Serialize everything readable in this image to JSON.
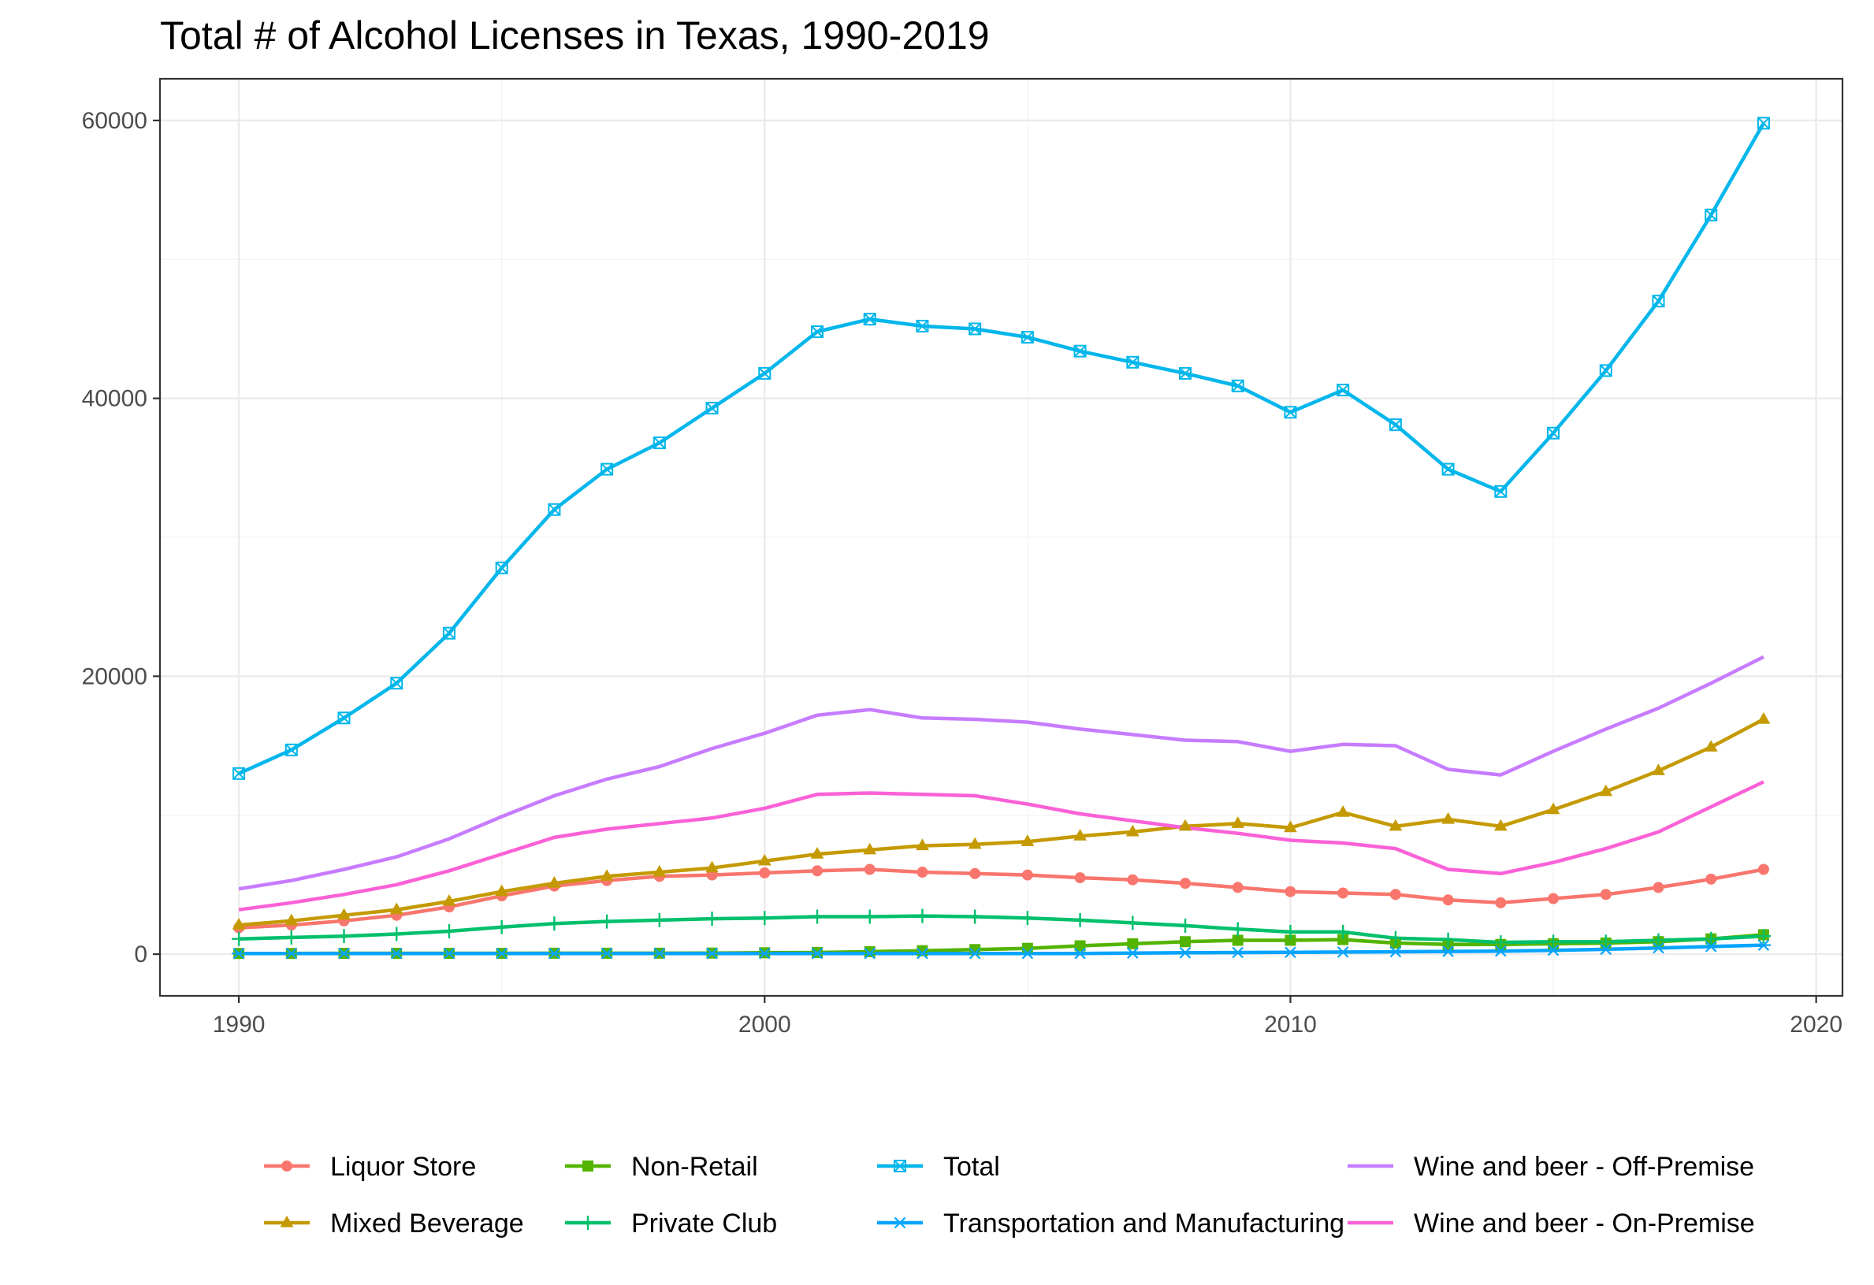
{
  "chart_data": {
    "type": "line",
    "title": "Total # of Alcohol Licenses in Texas, 1990-2019",
    "xlabel": "",
    "ylabel": "",
    "xlim": [
      1988.5,
      2020.5
    ],
    "ylim": [
      -3000,
      63000
    ],
    "x_ticks": [
      1990,
      2000,
      2010,
      2020
    ],
    "y_ticks": [
      0,
      20000,
      40000,
      60000
    ],
    "x_tick_labels": [
      "1990",
      "2000",
      "2010",
      "2020"
    ],
    "y_tick_labels": [
      "0",
      "20000",
      "40000",
      "60000"
    ],
    "grid": true,
    "legend_position": "bottom",
    "x": [
      1990,
      1991,
      1992,
      1993,
      1994,
      1995,
      1996,
      1997,
      1998,
      1999,
      2000,
      2001,
      2002,
      2003,
      2004,
      2005,
      2006,
      2007,
      2008,
      2009,
      2010,
      2011,
      2012,
      2013,
      2014,
      2015,
      2016,
      2017,
      2018,
      2019
    ],
    "series": [
      {
        "name": "Liquor Store",
        "color": "#F8766D",
        "marker": "circle",
        "values": [
          1900,
          2100,
          2400,
          2800,
          3400,
          4200,
          4900,
          5300,
          5600,
          5700,
          5850,
          6000,
          6100,
          5900,
          5800,
          5700,
          5500,
          5350,
          5100,
          4800,
          4500,
          4400,
          4300,
          3900,
          3700,
          4000,
          4300,
          4800,
          5400,
          6100
        ]
      },
      {
        "name": "Mixed Beverage",
        "color": "#C49A00",
        "marker": "triangle",
        "values": [
          2100,
          2400,
          2800,
          3200,
          3800,
          4500,
          5100,
          5600,
          5900,
          6200,
          6700,
          7200,
          7500,
          7800,
          7900,
          8100,
          8500,
          8800,
          9200,
          9400,
          9100,
          10200,
          9200,
          9700,
          9200,
          10400,
          11700,
          13200,
          14900,
          16900
        ]
      },
      {
        "name": "Non-Retail",
        "color": "#53B400",
        "marker": "square",
        "values": [
          50,
          50,
          60,
          60,
          60,
          60,
          70,
          70,
          70,
          80,
          100,
          120,
          180,
          250,
          330,
          420,
          600,
          750,
          900,
          1000,
          1000,
          1050,
          800,
          700,
          700,
          750,
          800,
          900,
          1100,
          1400
        ]
      },
      {
        "name": "Private Club",
        "color": "#00C06C",
        "marker": "plus",
        "values": [
          1100,
          1200,
          1300,
          1450,
          1650,
          1950,
          2200,
          2350,
          2450,
          2550,
          2600,
          2700,
          2700,
          2750,
          2700,
          2600,
          2450,
          2250,
          2050,
          1800,
          1600,
          1600,
          1150,
          1050,
          850,
          900,
          900,
          1000,
          1100,
          1300
        ]
      },
      {
        "name": "Total",
        "color": "#00B6EB",
        "marker": "boxx",
        "values": [
          13000,
          14700,
          17000,
          19500,
          23100,
          27800,
          32000,
          34900,
          36800,
          39300,
          41800,
          44800,
          45700,
          45200,
          45000,
          44400,
          43400,
          42600,
          41800,
          40900,
          39000,
          40600,
          38100,
          34900,
          33300,
          37500,
          42000,
          47000,
          53200,
          59800
        ]
      },
      {
        "name": "Transportation and Manufacturing",
        "color": "#06A4FF",
        "marker": "asterisk",
        "values": [
          50,
          50,
          50,
          50,
          50,
          50,
          50,
          50,
          50,
          50,
          50,
          50,
          50,
          50,
          50,
          50,
          50,
          80,
          100,
          120,
          130,
          150,
          170,
          200,
          220,
          280,
          350,
          450,
          550,
          650
        ]
      },
      {
        "name": "Wine and beer - Off-Premise",
        "color": "#C77CFF",
        "marker": "none",
        "values": [
          4700,
          5300,
          6100,
          7000,
          8300,
          9900,
          11400,
          12600,
          13500,
          14800,
          15900,
          17200,
          17600,
          17000,
          16900,
          16700,
          16200,
          15800,
          15400,
          15300,
          14600,
          15100,
          15000,
          13300,
          12900,
          14600,
          16200,
          17700,
          19500,
          21400
        ]
      },
      {
        "name": "Wine and beer - On-Premise",
        "color": "#FB61D7",
        "marker": "none",
        "values": [
          3200,
          3700,
          4300,
          5000,
          6000,
          7200,
          8400,
          9000,
          9400,
          9800,
          10500,
          11500,
          11600,
          11500,
          11400,
          10800,
          10100,
          9600,
          9100,
          8700,
          8200,
          8000,
          7600,
          6100,
          5800,
          6600,
          7600,
          8800,
          10600,
          12400
        ]
      }
    ]
  }
}
